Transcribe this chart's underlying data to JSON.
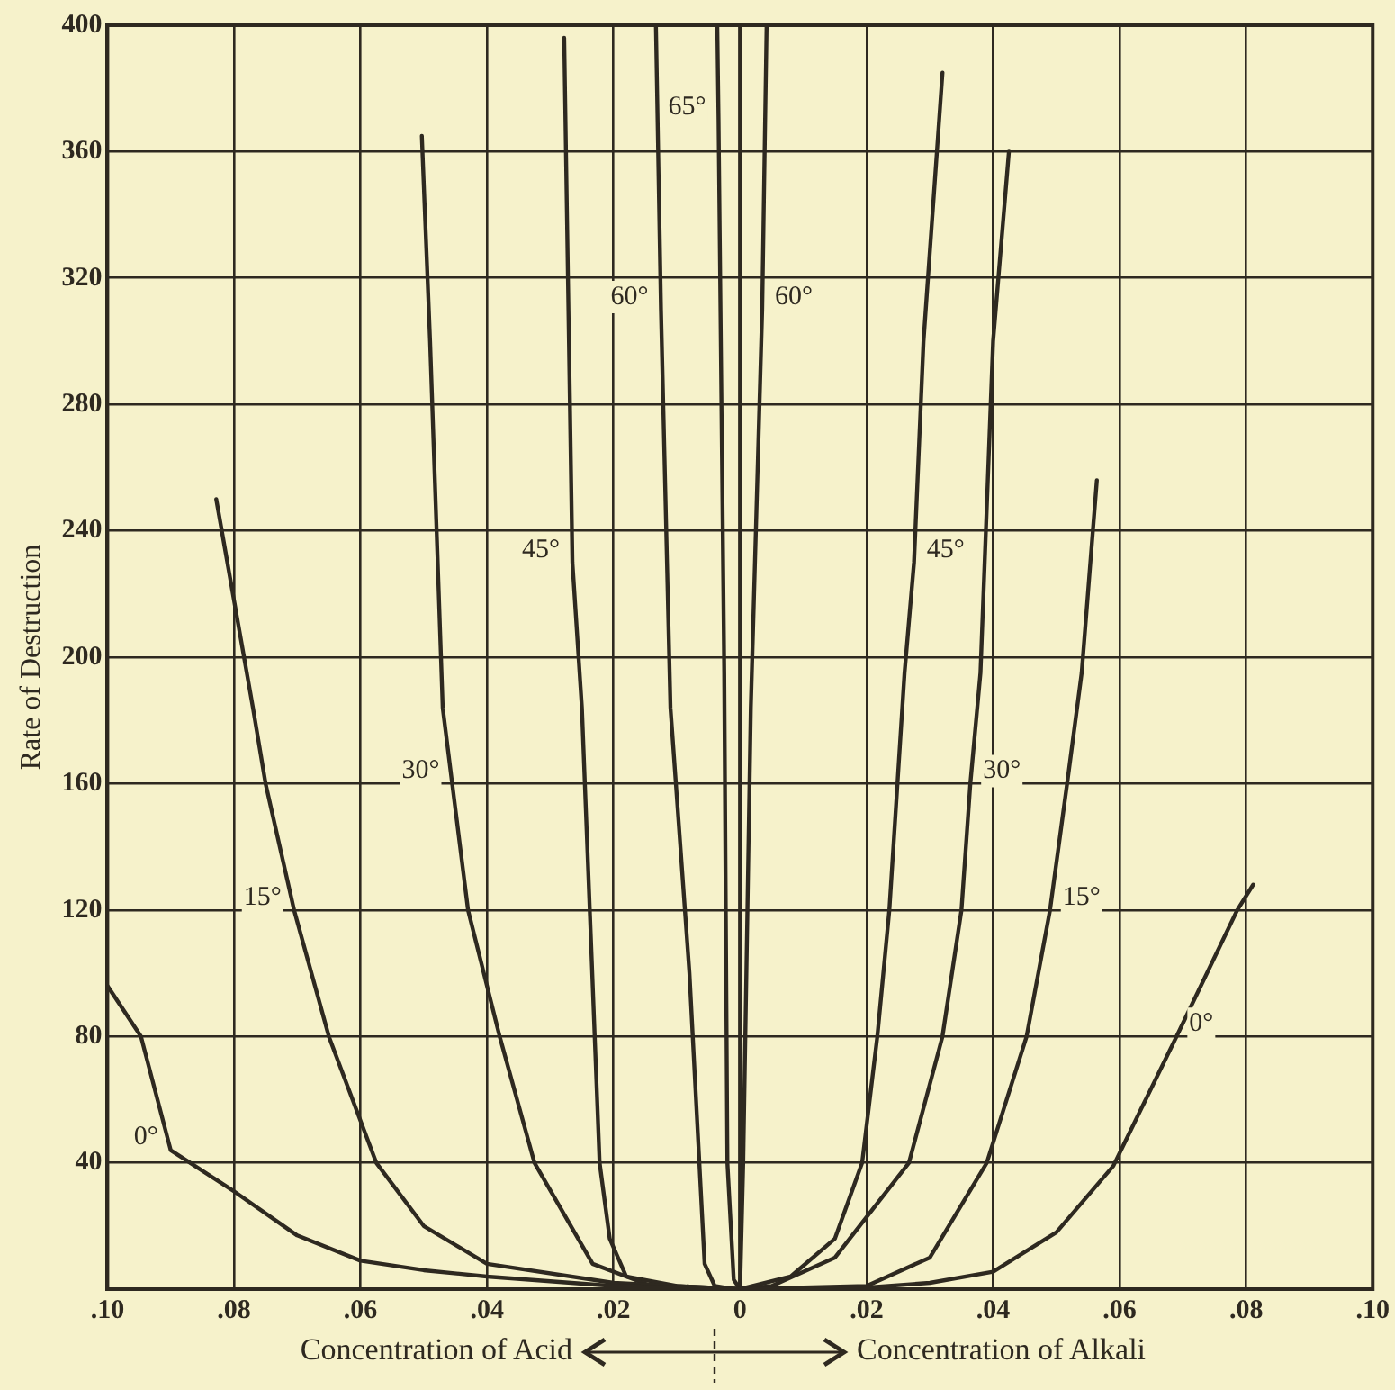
{
  "chart_data": {
    "type": "line",
    "ylabel": "Rate of Destruction",
    "xlim": [
      -0.1,
      0.1
    ],
    "xticks": [
      {
        "value": -0.1,
        "label": ".10"
      },
      {
        "value": -0.08,
        "label": ".08"
      },
      {
        "value": -0.06,
        "label": ".06"
      },
      {
        "value": -0.04,
        "label": ".04"
      },
      {
        "value": -0.02,
        "label": ".02"
      },
      0,
      {
        "value": 0.02,
        "label": ".02"
      },
      {
        "value": 0.04,
        "label": ".04"
      },
      {
        "value": 0.06,
        "label": ".06"
      },
      {
        "value": 0.08,
        "label": ".08"
      },
      {
        "value": 0.1,
        "label": ".10"
      }
    ],
    "ylim": [
      0,
      400
    ],
    "yticks": [
      {
        "value": 0,
        "label": null
      },
      40,
      80,
      120,
      160,
      200,
      240,
      280,
      320,
      360,
      400
    ],
    "grid": true,
    "legend": false,
    "marker": "none",
    "line_style": "solid",
    "series": [
      {
        "color": "#2e2920",
        "x": [
          -0.1,
          -0.0947,
          -0.09,
          -0.08,
          -0.07,
          -0.06,
          -0.05,
          -0.04,
          -0.02,
          0,
          0.02,
          0.03,
          0.04,
          0.05,
          0.059,
          0.069,
          0.0786,
          0.0811
        ],
        "values": [
          96,
          80,
          44,
          31,
          17,
          9,
          6,
          4,
          1,
          0,
          0.5,
          2,
          5.5,
          18,
          39,
          80,
          120,
          128
        ]
      },
      {
        "color": "#2e2920",
        "x": [
          -0.0828,
          -0.077,
          -0.075,
          -0.0705,
          -0.065,
          -0.0575,
          -0.05,
          -0.04,
          -0.02,
          0,
          0.02,
          0.03,
          0.039,
          0.0453,
          0.049,
          0.0517,
          0.054,
          0.0564
        ],
        "values": [
          250,
          184,
          160,
          120,
          80,
          40,
          20,
          8,
          2,
          0,
          1,
          10,
          40,
          80,
          120,
          160,
          195,
          256
        ]
      },
      {
        "color": "#2e2920",
        "x": [
          -0.0503,
          -0.049,
          -0.047,
          -0.0455,
          -0.043,
          -0.038,
          -0.0325,
          -0.0233,
          -0.014,
          -0.005,
          0,
          0.005,
          0.015,
          0.0267,
          0.032,
          0.035,
          0.0364,
          0.038,
          0.04,
          0.0425
        ],
        "values": [
          365,
          300,
          184,
          160,
          120,
          80,
          40,
          8,
          1,
          0,
          0,
          1,
          10,
          40,
          80,
          120,
          160,
          195,
          300,
          360
        ]
      },
      {
        "color": "#2e2920",
        "x": [
          -0.0278,
          -0.0265,
          -0.025,
          -0.0222,
          -0.0206,
          -0.018,
          -0.01,
          0,
          0.008,
          0.015,
          0.0193,
          0.0217,
          0.0236,
          0.026,
          0.0275,
          0.029,
          0.032
        ],
        "values": [
          396,
          230,
          184,
          40,
          16,
          4,
          1,
          0,
          4,
          16,
          40,
          80,
          120,
          195,
          230,
          300,
          385
        ]
      },
      {
        "color": "#2e2920",
        "x": [
          -0.0133,
          -0.0125,
          -0.011,
          -0.008,
          -0.0056,
          -0.004,
          -0.001,
          0,
          0.0005,
          0.0017,
          0.0035,
          0.0042
        ],
        "values": [
          400,
          310,
          184,
          100,
          8,
          1,
          0,
          0,
          40,
          184,
          310,
          400
        ]
      },
      {
        "color": "#2e2920",
        "x": [
          -0.0036,
          -0.0034,
          -0.0025,
          -0.002,
          -0.001,
          0,
          0
        ],
        "values": [
          400,
          370,
          195,
          40,
          3,
          0,
          400
        ]
      }
    ],
    "annotations": [
      {
        "text": "0°",
        "x": -0.09,
        "y": 44
      },
      {
        "text": "15°",
        "x": -0.0705,
        "y": 120
      },
      {
        "text": "30°",
        "x": -0.0455,
        "y": 160
      },
      {
        "text": "45°",
        "x": -0.0265,
        "y": 230
      },
      {
        "text": "60°",
        "x": -0.0125,
        "y": 310
      },
      {
        "text": "65°",
        "x": -0.0034,
        "y": 370
      },
      {
        "text": "60°",
        "x": 0.0035,
        "y": 310
      },
      {
        "text": "45°",
        "x": 0.0275,
        "y": 230
      },
      {
        "text": "30°",
        "x": 0.0364,
        "y": 160
      },
      {
        "text": "15°",
        "x": 0.049,
        "y": 120
      },
      {
        "text": "0°",
        "x": 0.069,
        "y": 80
      },
      "Concentration of Acid",
      "Concentration of Alkali"
    ]
  }
}
